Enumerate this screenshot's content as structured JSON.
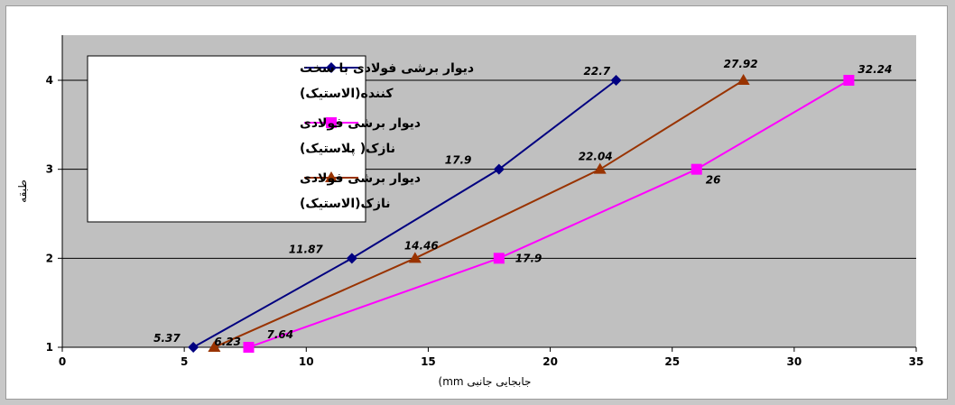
{
  "chart_data": {
    "type": "line",
    "xlabel": "(mm  جابجایی جانبی",
    "ylabel": "طبقه",
    "xlim": [
      0,
      35
    ],
    "ylim": [
      1,
      4
    ],
    "xticks": [
      "0",
      "5",
      "10",
      "15",
      "20",
      "25",
      "30",
      "35"
    ],
    "yticks": [
      "1",
      "2",
      "3",
      "4"
    ],
    "grid": "horizontal",
    "legend_position": "top-left",
    "colors": {
      "plot_bg": "#c0c0c0",
      "grid": "#000000"
    },
    "series": [
      {
        "name_lines": [
          "دیوار برشی فولادی با سخت",
          "کننده(الاستیک)"
        ],
        "color": "#000080",
        "marker": "diamond",
        "points": [
          {
            "x": 5.37,
            "y": 1,
            "label": "5.37"
          },
          {
            "x": 11.87,
            "y": 2,
            "label": "11.87"
          },
          {
            "x": 17.9,
            "y": 3,
            "label": "17.9"
          },
          {
            "x": 22.7,
            "y": 4,
            "label": "22.7"
          }
        ]
      },
      {
        "name_lines": [
          "دیوار برشی فولادی",
          "نازک( پلاستیک)"
        ],
        "color": "#ff00ff",
        "marker": "square",
        "points": [
          {
            "x": 7.64,
            "y": 1,
            "label": "7.64"
          },
          {
            "x": 17.9,
            "y": 2,
            "label": "17.9"
          },
          {
            "x": 26,
            "y": 3,
            "label": "26"
          },
          {
            "x": 32.24,
            "y": 4,
            "label": "32.24"
          }
        ]
      },
      {
        "name_lines": [
          "دیوار برشی فولادی",
          "نازک(الاستیک)"
        ],
        "color": "#993300",
        "marker": "triangle",
        "points": [
          {
            "x": 6.23,
            "y": 1,
            "label": "6.23"
          },
          {
            "x": 14.46,
            "y": 2,
            "label": "14.46"
          },
          {
            "x": 22.04,
            "y": 3,
            "label": "22.04"
          },
          {
            "x": 27.92,
            "y": 4,
            "label": "27.92"
          }
        ]
      }
    ]
  }
}
